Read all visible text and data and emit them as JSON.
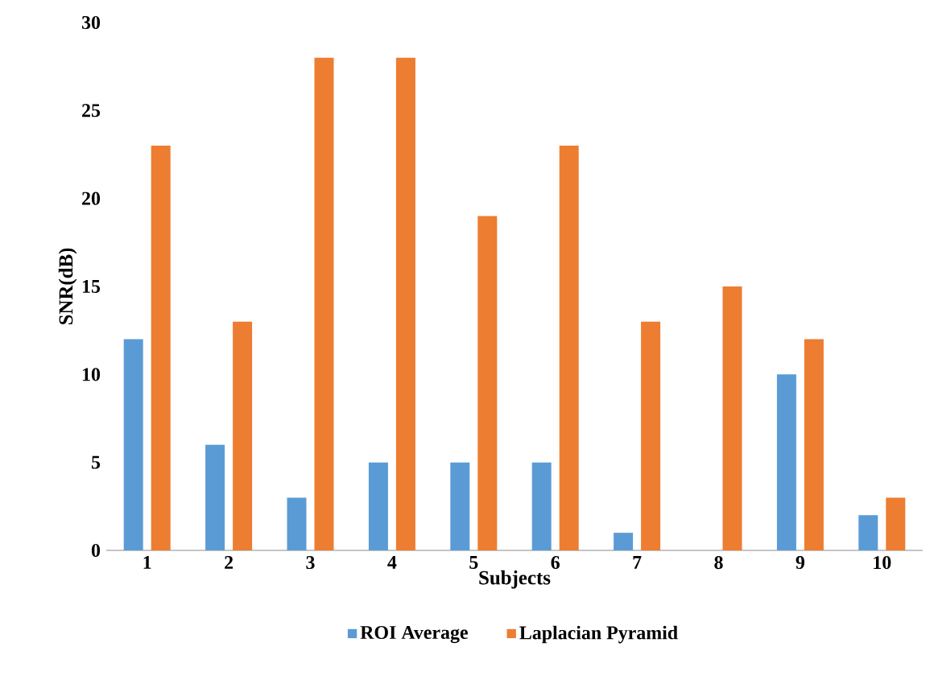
{
  "chart_data": {
    "type": "bar",
    "xlabel": "Subjects",
    "ylabel": "SNR(dB)",
    "categories": [
      "1",
      "2",
      "3",
      "4",
      "5",
      "6",
      "7",
      "8",
      "9",
      "10"
    ],
    "series": [
      {
        "name": "ROI Average",
        "color": "#5b9bd5",
        "values": [
          12,
          6,
          3,
          5,
          5,
          5,
          1,
          0,
          10,
          2
        ]
      },
      {
        "name": "Laplacian Pyramid",
        "color": "#ed7d31",
        "values": [
          23,
          13,
          28,
          28,
          19,
          23,
          13,
          15,
          12,
          3
        ]
      }
    ],
    "ylim": [
      0,
      30
    ],
    "yticks": [
      0,
      5,
      10,
      15,
      20,
      25,
      30
    ],
    "grid": false,
    "legend": "bottom"
  }
}
